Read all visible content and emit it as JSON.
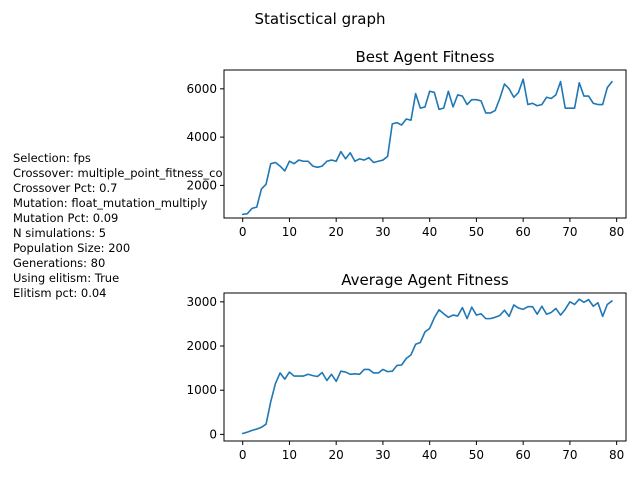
{
  "figure": {
    "suptitle": "Statisctical graph"
  },
  "params": [
    "Selection: fps",
    "Crossover: multiple_point_fitness_co",
    "Crossover Pct: 0.7",
    "Mutation: float_mutation_multiply",
    "Mutation Pct: 0.09",
    "N simulations: 5",
    "Population Size: 200",
    "Generations: 80",
    "Using elitism: True",
    "Elitism pct: 0.04"
  ],
  "chart_data": [
    {
      "type": "line",
      "title": "Best Agent Fitness",
      "xlabel": "",
      "ylabel": "",
      "xlim": [
        -4,
        82
      ],
      "ylim": [
        650,
        6780
      ],
      "xticks": [
        0,
        10,
        20,
        30,
        40,
        50,
        60,
        70,
        80
      ],
      "yticks": [
        2000,
        4000,
        6000
      ],
      "color": "#1f77b4",
      "x": [
        0,
        1,
        2,
        3,
        4,
        5,
        6,
        7,
        8,
        9,
        10,
        11,
        12,
        13,
        14,
        15,
        16,
        17,
        18,
        19,
        20,
        21,
        22,
        23,
        24,
        25,
        26,
        27,
        28,
        29,
        30,
        31,
        32,
        33,
        34,
        35,
        36,
        37,
        38,
        39,
        40,
        41,
        42,
        43,
        44,
        45,
        46,
        47,
        48,
        49,
        50,
        51,
        52,
        53,
        54,
        55,
        56,
        57,
        58,
        59,
        60,
        61,
        62,
        63,
        64,
        65,
        66,
        67,
        68,
        69,
        70,
        71,
        72,
        73,
        74,
        75,
        76,
        77,
        78,
        79
      ],
      "values": [
        800,
        830,
        1050,
        1100,
        1850,
        2050,
        2900,
        2950,
        2800,
        2600,
        3000,
        2900,
        3050,
        3000,
        3000,
        2800,
        2750,
        2800,
        3000,
        3050,
        3000,
        3400,
        3100,
        3350,
        3000,
        3100,
        3050,
        3150,
        2950,
        3000,
        3050,
        3200,
        4550,
        4600,
        4500,
        4750,
        4700,
        5800,
        5200,
        5250,
        5900,
        5850,
        5150,
        5200,
        5900,
        5250,
        5750,
        5700,
        5350,
        5550,
        5550,
        5500,
        5000,
        5000,
        5100,
        5600,
        6200,
        6000,
        5650,
        5850,
        6400,
        5350,
        5400,
        5300,
        5350,
        5650,
        5600,
        5750,
        6300,
        5200,
        5200,
        5200,
        6250,
        5700,
        5700,
        5400,
        5350,
        5350,
        6050,
        6300
      ]
    },
    {
      "type": "line",
      "title": "Average Agent Fitness",
      "xlabel": "",
      "ylabel": "",
      "xlim": [
        -4,
        82
      ],
      "ylim": [
        -150,
        3200
      ],
      "xticks": [
        0,
        10,
        20,
        30,
        40,
        50,
        60,
        70,
        80
      ],
      "yticks": [
        0,
        1000,
        2000,
        3000
      ],
      "color": "#1f77b4",
      "x": [
        0,
        1,
        2,
        3,
        4,
        5,
        6,
        7,
        8,
        9,
        10,
        11,
        12,
        13,
        14,
        15,
        16,
        17,
        18,
        19,
        20,
        21,
        22,
        23,
        24,
        25,
        26,
        27,
        28,
        29,
        30,
        31,
        32,
        33,
        34,
        35,
        36,
        37,
        38,
        39,
        40,
        41,
        42,
        43,
        44,
        45,
        46,
        47,
        48,
        49,
        50,
        51,
        52,
        53,
        54,
        55,
        56,
        57,
        58,
        59,
        60,
        61,
        62,
        63,
        64,
        65,
        66,
        67,
        68,
        69,
        70,
        71,
        72,
        73,
        74,
        75,
        76,
        77,
        78,
        79
      ],
      "values": [
        20,
        50,
        90,
        120,
        160,
        230,
        740,
        1150,
        1390,
        1250,
        1410,
        1320,
        1320,
        1320,
        1360,
        1330,
        1310,
        1400,
        1220,
        1360,
        1200,
        1430,
        1410,
        1360,
        1370,
        1360,
        1470,
        1470,
        1390,
        1390,
        1470,
        1420,
        1430,
        1560,
        1570,
        1720,
        1800,
        2040,
        2080,
        2320,
        2400,
        2640,
        2820,
        2730,
        2650,
        2700,
        2680,
        2870,
        2620,
        2880,
        2700,
        2730,
        2620,
        2620,
        2650,
        2690,
        2810,
        2670,
        2930,
        2860,
        2830,
        2890,
        2890,
        2720,
        2900,
        2720,
        2760,
        2850,
        2700,
        2830,
        3000,
        2940,
        3060,
        2990,
        3050,
        2900,
        2980,
        2670,
        2940,
        3020
      ]
    }
  ]
}
